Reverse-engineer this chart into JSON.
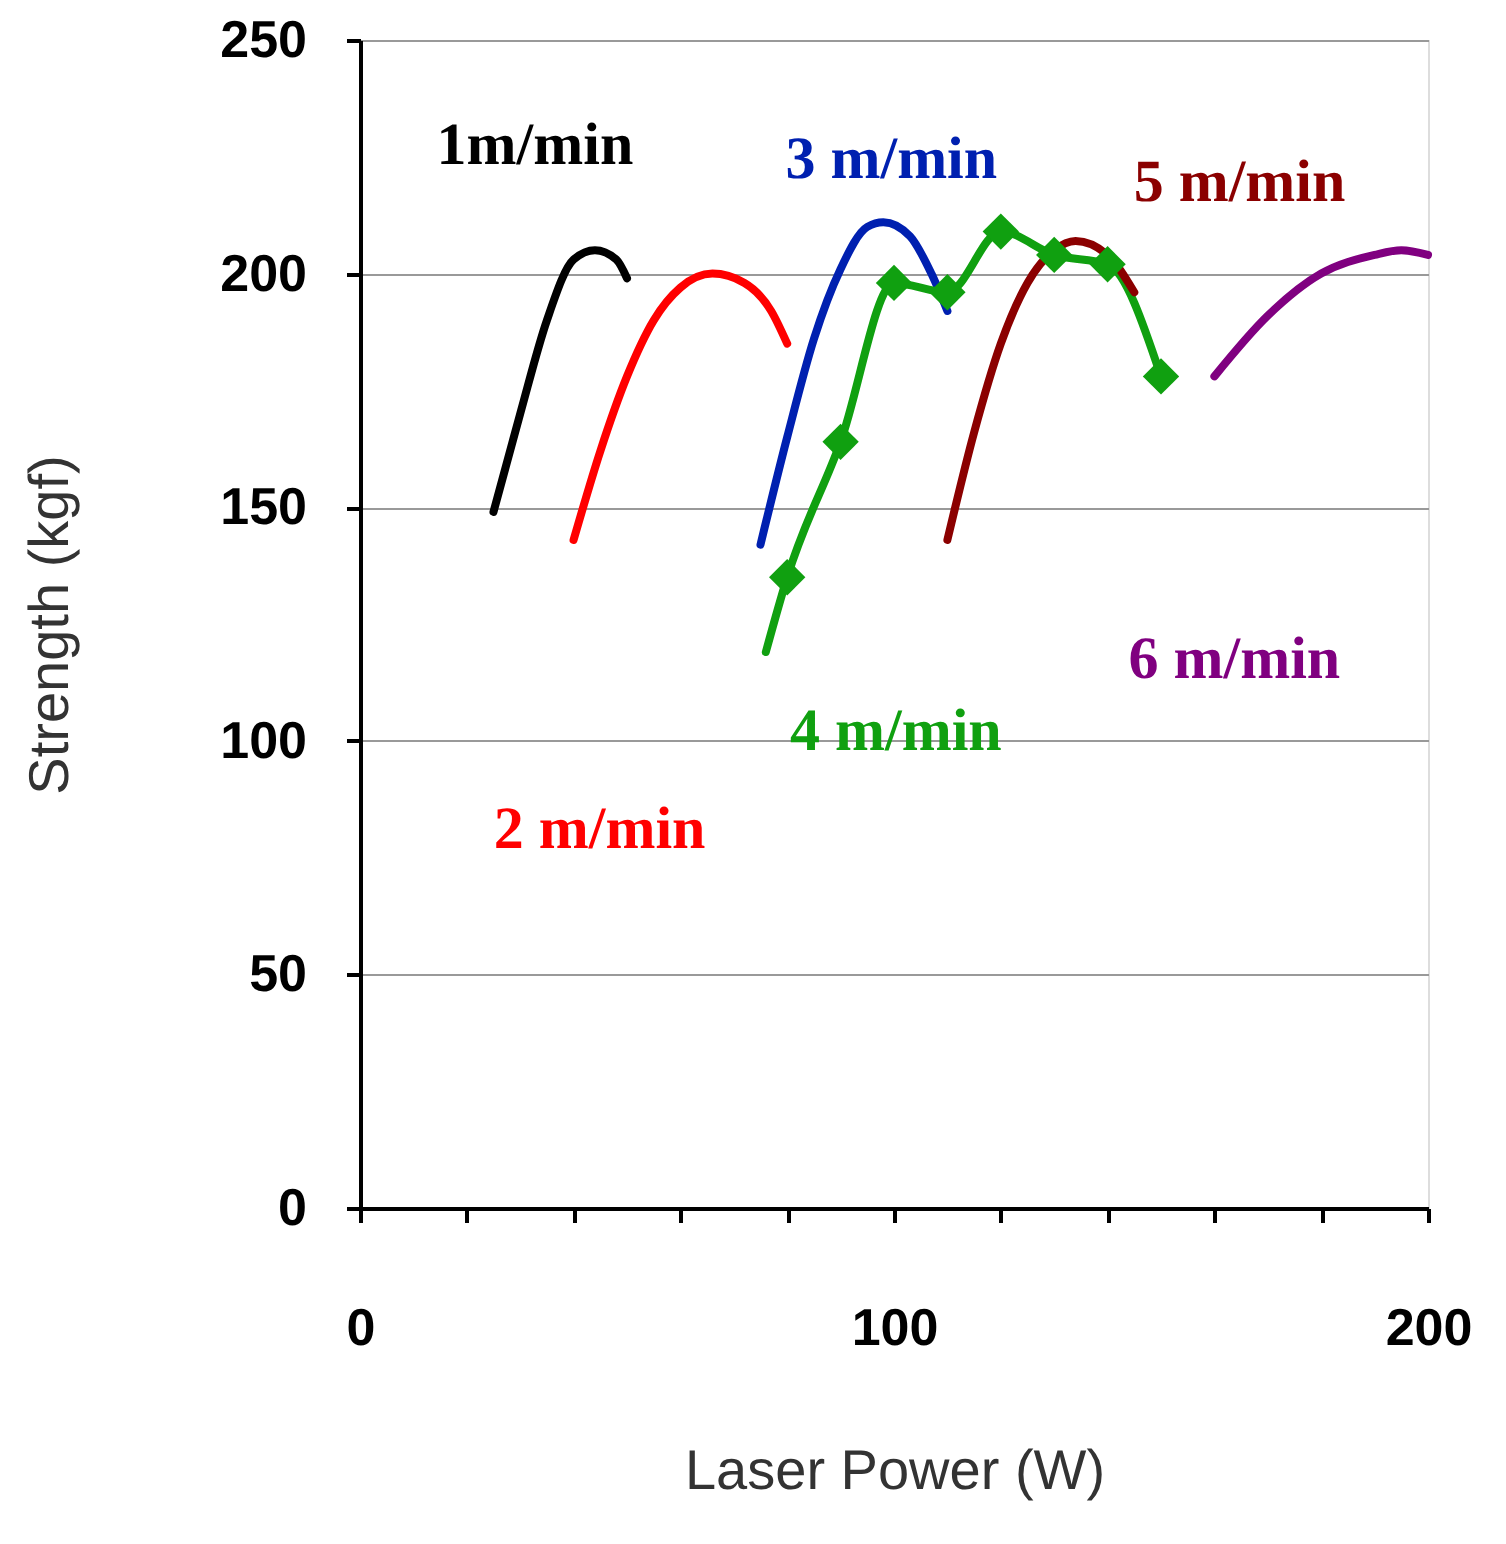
{
  "chart_data": {
    "type": "line",
    "xlabel": "Laser Power (W)",
    "ylabel": "Strength (kgf)",
    "xlim": [
      0,
      200
    ],
    "ylim": [
      0,
      250
    ],
    "xticks": [
      0,
      {
        "value": 20,
        "label": null
      },
      {
        "value": 40,
        "label": null
      },
      {
        "value": 60,
        "label": null
      },
      {
        "value": 80,
        "label": null
      },
      100,
      {
        "value": 120,
        "label": null
      },
      {
        "value": 140,
        "label": null
      },
      {
        "value": 160,
        "label": null
      },
      {
        "value": 180,
        "label": null
      },
      200
    ],
    "yticks": [
      0,
      50,
      100,
      150,
      200,
      250
    ],
    "grid": "y",
    "series": [
      {
        "name": "1m/min",
        "color": "#000000",
        "x": [
          25,
          30,
          35,
          40,
          44,
          48,
          50
        ],
        "values": [
          149,
          170,
          190,
          203,
          205,
          203,
          199
        ]
      },
      {
        "name": "2 m/min",
        "color": "#ff0000",
        "x": [
          40,
          45,
          50,
          55,
          60,
          66,
          72,
          77,
          80
        ],
        "values": [
          143,
          162,
          178,
          190,
          197,
          200,
          198,
          192,
          185
        ]
      },
      {
        "name": "3 m/min",
        "color": "#0020b0",
        "x": [
          75,
          80,
          85,
          90,
          95,
          98,
          103,
          107,
          110
        ],
        "values": [
          142,
          165,
          186,
          201,
          210,
          211,
          208,
          200,
          192
        ]
      },
      {
        "name": "4 m/min",
        "color": "#10a010",
        "x": [
          76,
          80,
          90,
          100,
          110,
          120,
          130,
          140,
          150
        ],
        "values": [
          119,
          135,
          164,
          198,
          196,
          209,
          204,
          202,
          178
        ]
      },
      {
        "name": "5 m/min",
        "color": "#8b0000",
        "x": [
          110,
          115,
          120,
          125,
          130,
          134,
          140,
          145
        ],
        "values": [
          143,
          166,
          185,
          198,
          205,
          207,
          204,
          196
        ]
      },
      {
        "name": "6 m/min",
        "color": "#800080",
        "x": [
          160,
          170,
          180,
          190,
          195,
          200
        ],
        "values": [
          178,
          191,
          200,
          204,
          205,
          204
        ]
      },
      {
        "type": "scatter",
        "marker": "diamond",
        "color": "#10a010",
        "x": [
          80,
          90,
          100,
          110,
          120,
          130,
          140,
          150
        ],
        "values": [
          135,
          164,
          198,
          196,
          209,
          204,
          202,
          178
        ]
      }
    ]
  }
}
